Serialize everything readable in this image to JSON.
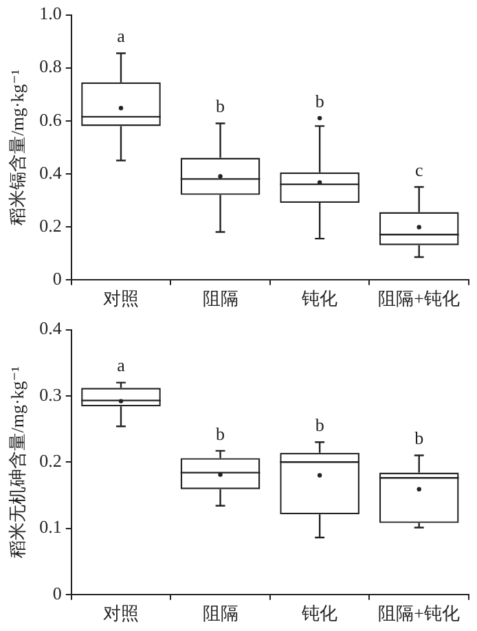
{
  "chart_data": [
    {
      "type": "box",
      "ylabel": "稻米镉含量/mg·kg⁻¹",
      "categories": [
        "对照",
        "阻隔",
        "钝化",
        "阻隔+钝化"
      ],
      "color": "#222222",
      "boxes": [
        {
          "low": 0.45,
          "q1": 0.58,
          "median": 0.615,
          "q3": 0.745,
          "high": 0.855,
          "mean": 0.648
        },
        {
          "low": 0.18,
          "q1": 0.32,
          "median": 0.38,
          "q3": 0.46,
          "high": 0.59,
          "mean": 0.39
        },
        {
          "low": 0.155,
          "q1": 0.29,
          "median": 0.36,
          "q3": 0.405,
          "high": 0.58,
          "mean": 0.367,
          "outliers": [
            0.61
          ]
        },
        {
          "low": 0.085,
          "q1": 0.13,
          "median": 0.17,
          "q3": 0.255,
          "high": 0.35,
          "mean": 0.198
        }
      ],
      "ylim": [
        0,
        1
      ],
      "yticks": [
        0,
        0.2,
        0.4,
        0.6,
        0.8,
        {
          "value": 1,
          "label": "1.0"
        }
      ],
      "grid": false,
      "annotations": [
        "a",
        "b",
        "b",
        "c"
      ]
    },
    {
      "type": "box",
      "ylabel": "稻米无机砷含量/mg·kg⁻¹",
      "categories": [
        "对照",
        "阻隔",
        "钝化",
        "阻隔+钝化"
      ],
      "color": "#222222",
      "boxes": [
        {
          "low": 0.254,
          "q1": 0.284,
          "median": 0.293,
          "q3": 0.312,
          "high": 0.32,
          "mean": 0.292
        },
        {
          "low": 0.134,
          "q1": 0.159,
          "median": 0.184,
          "q3": 0.206,
          "high": 0.217,
          "mean": 0.181
        },
        {
          "low": 0.086,
          "q1": 0.121,
          "median": 0.2,
          "q3": 0.214,
          "high": 0.23,
          "mean": 0.18
        },
        {
          "low": 0.101,
          "q1": 0.108,
          "median": 0.176,
          "q3": 0.184,
          "high": 0.21,
          "mean": 0.159
        }
      ],
      "ylim": [
        0,
        0.4
      ],
      "yticks": [
        0,
        0.1,
        0.2,
        0.3,
        0.4
      ],
      "grid": false,
      "annotations": [
        "a",
        "b",
        "b",
        "b"
      ]
    }
  ]
}
